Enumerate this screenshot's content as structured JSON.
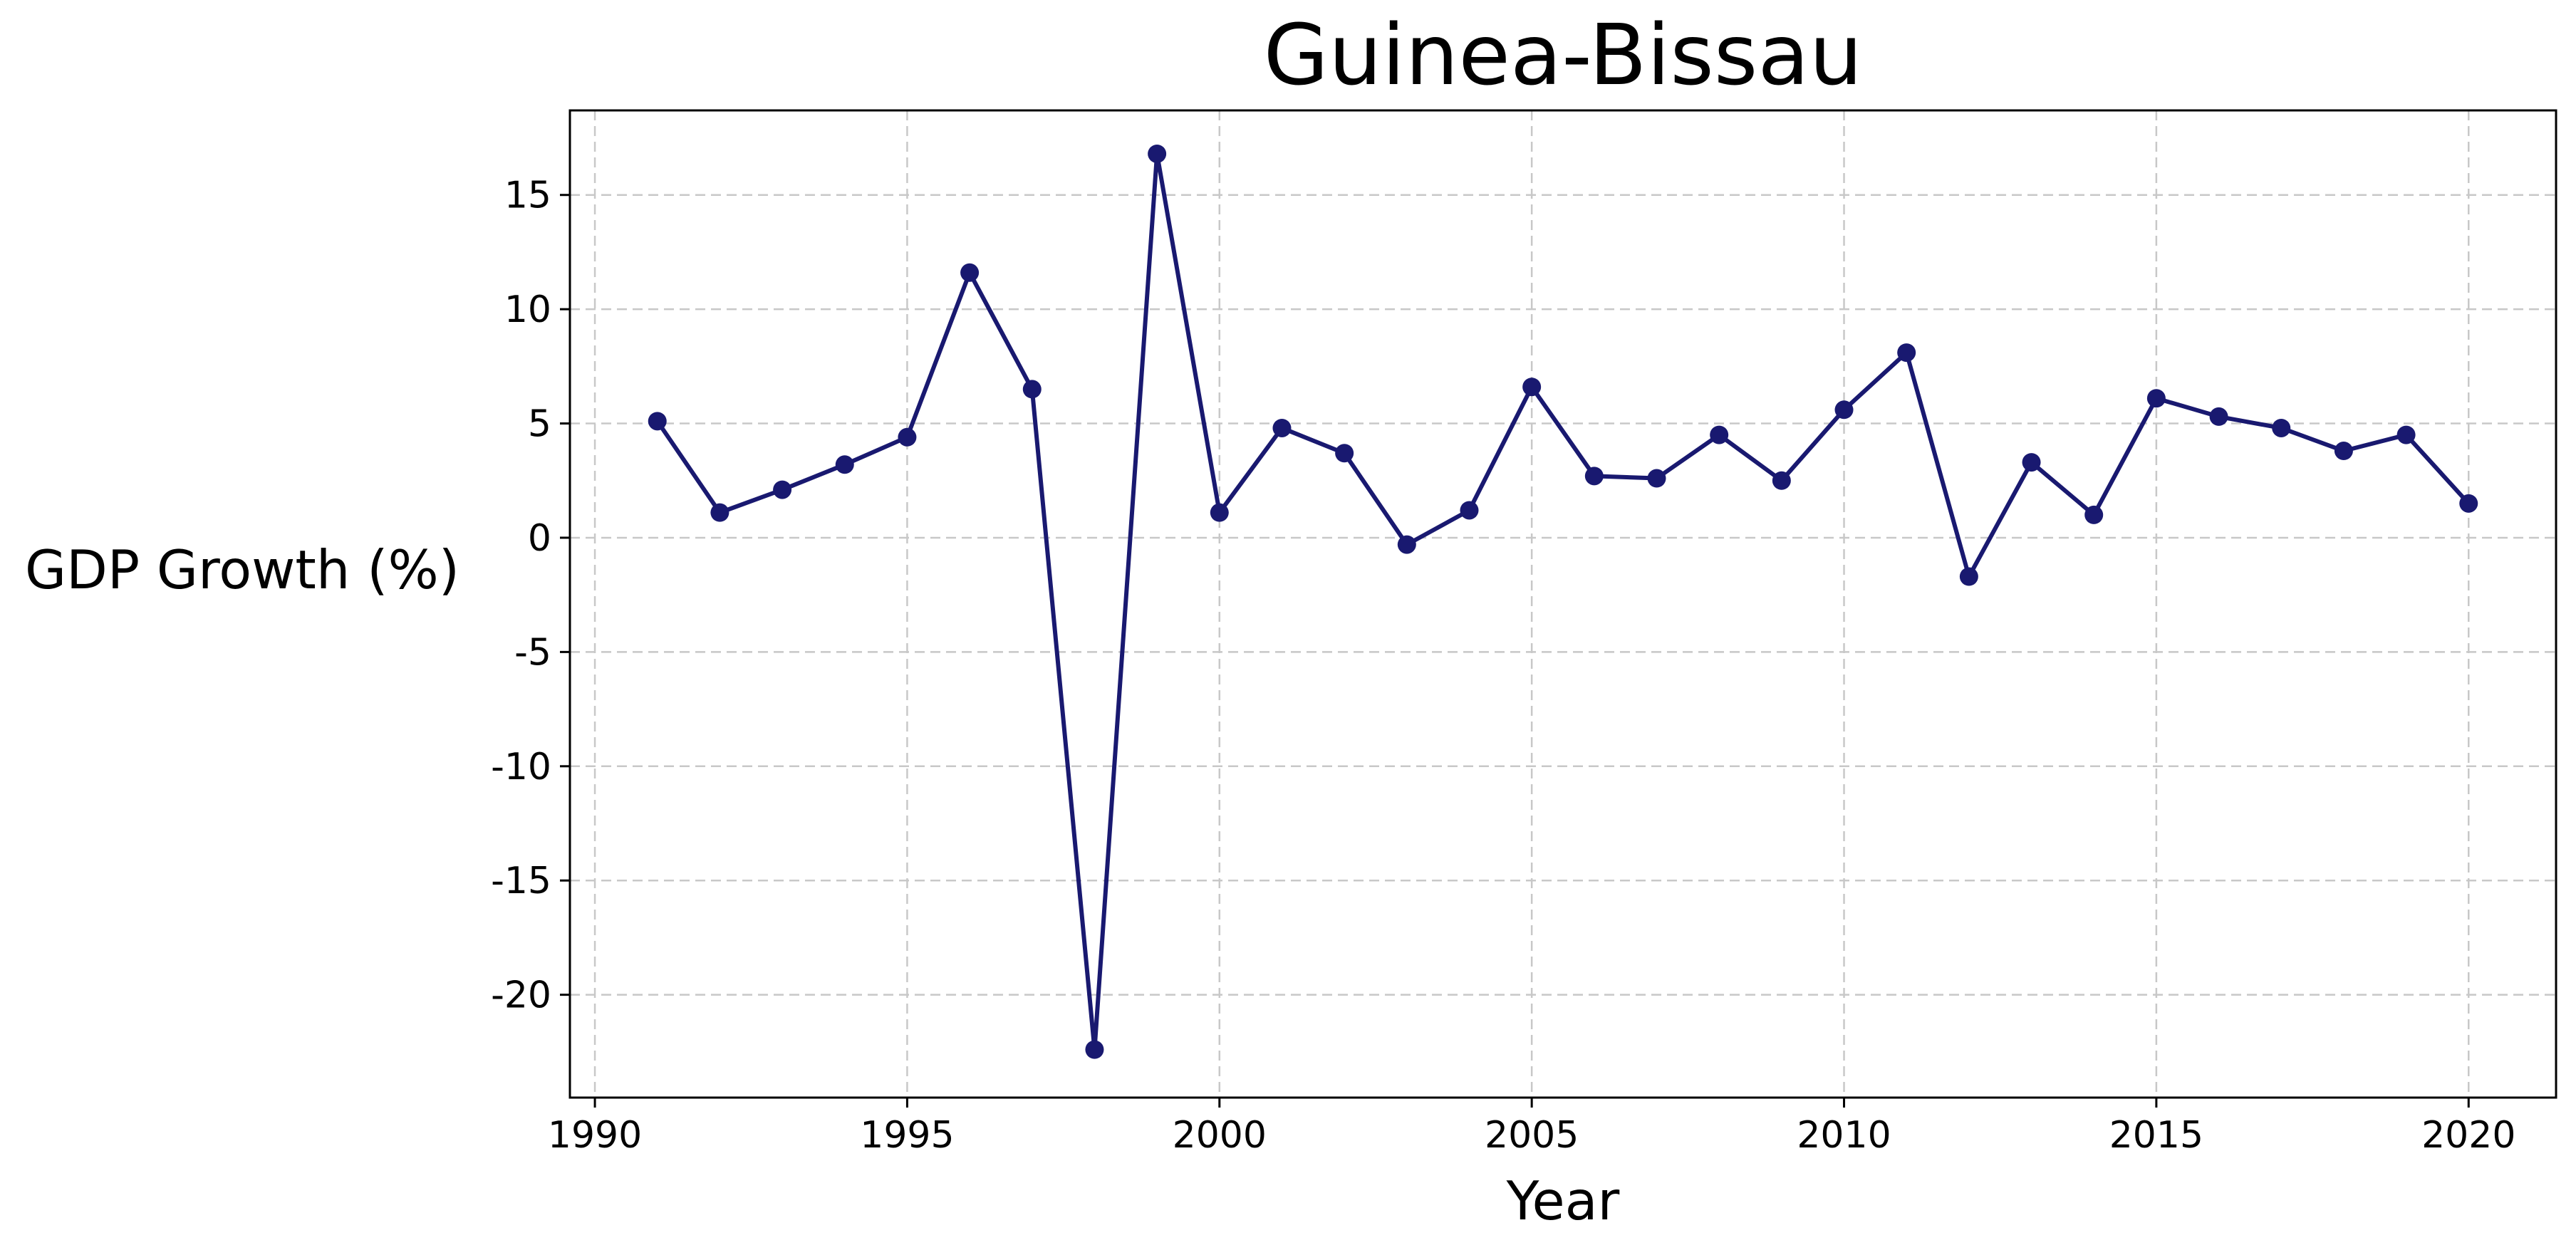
{
  "chart_data": {
    "type": "line",
    "title": "Guinea-Bissau",
    "xlabel": "Year",
    "ylabel": "GDP Growth (%)",
    "xlim": [
      1989.6,
      2021.4
    ],
    "ylim": [
      -24.5,
      18.7
    ],
    "xticks": [
      1990,
      1995,
      2000,
      2005,
      2010,
      2015,
      2020
    ],
    "yticks": [
      -20,
      -15,
      -10,
      -5,
      0,
      5,
      10,
      15
    ],
    "grid": true,
    "series": [
      {
        "x": [
          1991,
          1992,
          1993,
          1994,
          1995,
          1996,
          1997,
          1998,
          1999,
          2000,
          2001,
          2002,
          2003,
          2004,
          2005,
          2006,
          2007,
          2008,
          2009,
          2010,
          2011,
          2012,
          2013,
          2014,
          2015,
          2016,
          2017,
          2018,
          2019,
          2020
        ],
        "values": [
          5.1,
          1.1,
          2.1,
          3.2,
          4.4,
          11.6,
          6.5,
          -22.4,
          16.8,
          1.1,
          4.8,
          3.7,
          -0.3,
          1.2,
          6.6,
          2.7,
          2.6,
          4.5,
          2.5,
          5.6,
          8.1,
          -1.7,
          3.3,
          1.0,
          6.1,
          5.3,
          4.8,
          3.8,
          4.5,
          1.5
        ]
      }
    ],
    "colors": {
      "line": "#191970",
      "marker": "#191970",
      "grid": "#c8c8c8",
      "axis": "#000000"
    }
  }
}
